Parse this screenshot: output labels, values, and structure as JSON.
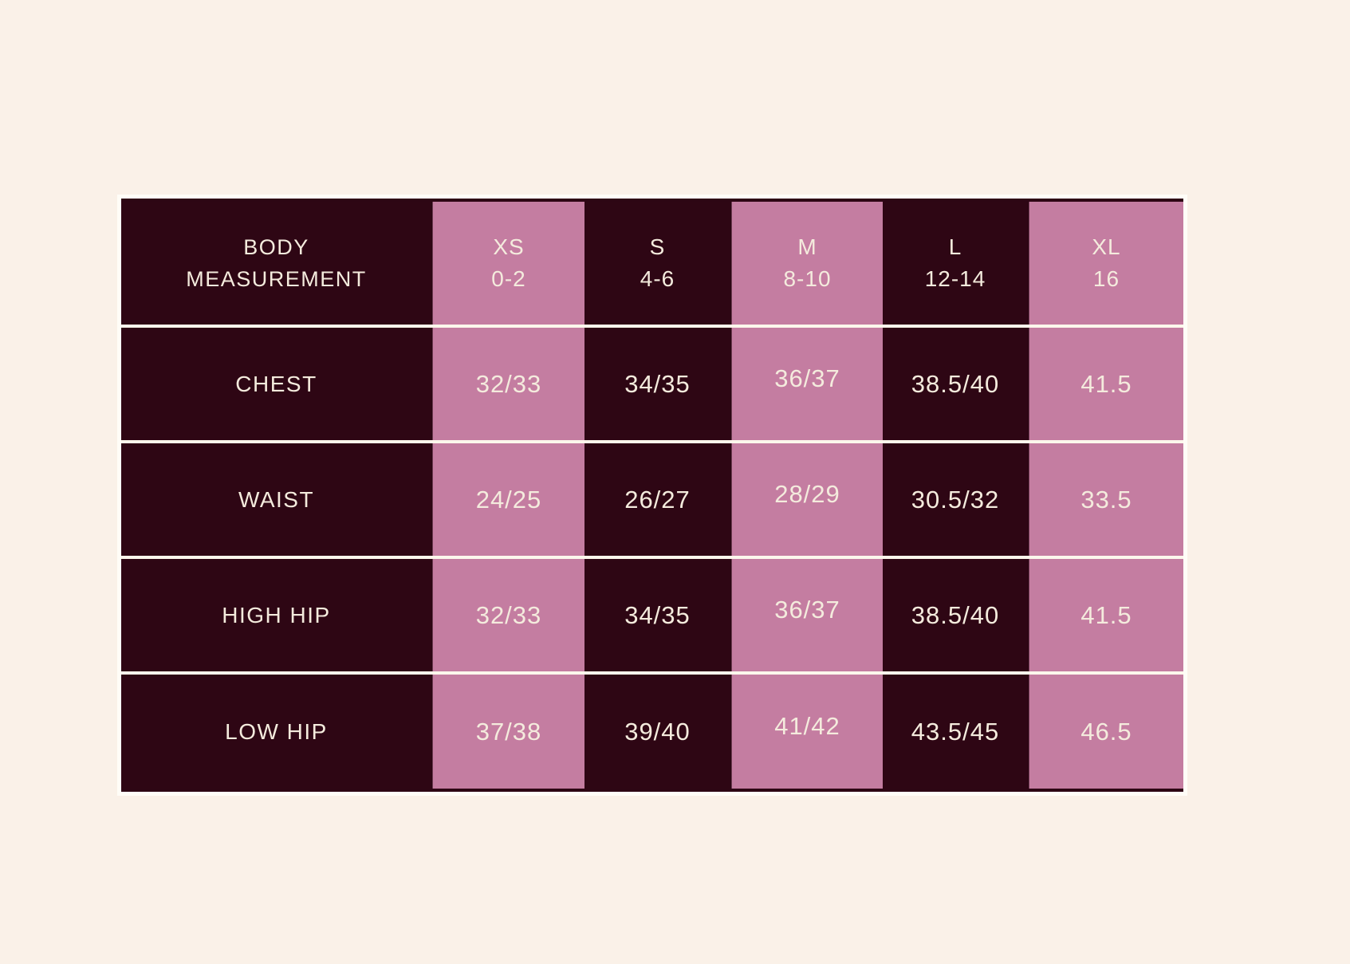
{
  "colors": {
    "background": "#faf1e8",
    "dark_cell": "#2e0614",
    "pink_cell": "#c47da1",
    "text": "#f4ebdd",
    "outer_border": "#fffdf7",
    "row_separator": "#fcf7ec",
    "dark_rule": "#2d0614"
  },
  "size_chart": {
    "header": {
      "label_lines": [
        "BODY",
        "MEASUREMENT"
      ],
      "columns": [
        {
          "size": "XS",
          "range": "0-2"
        },
        {
          "size": "S",
          "range": "4-6"
        },
        {
          "size": "M",
          "range": "8-10"
        },
        {
          "size": "L",
          "range": "12-14"
        },
        {
          "size": "XL",
          "range": "16"
        }
      ]
    },
    "rows": [
      {
        "label": "CHEST",
        "values": [
          "32/33",
          "34/35",
          "36/37",
          "38.5/40",
          "41.5"
        ]
      },
      {
        "label": "WAIST",
        "values": [
          "24/25",
          "26/27",
          "28/29",
          "30.5/32",
          "33.5"
        ]
      },
      {
        "label": "HIGH HIP",
        "values": [
          "32/33",
          "34/35",
          "36/37",
          "38.5/40",
          "41.5"
        ]
      },
      {
        "label": "LOW HIP",
        "values": [
          "37/38",
          "39/40",
          "41/42",
          "43.5/45",
          "46.5"
        ]
      }
    ]
  },
  "chart_data": {
    "type": "table",
    "title": "BODY MEASUREMENT",
    "columns": [
      "BODY MEASUREMENT",
      "XS 0-2",
      "S 4-6",
      "M 8-10",
      "L 12-14",
      "XL 16"
    ],
    "rows": [
      [
        "CHEST",
        "32/33",
        "34/35",
        "36/37",
        "38.5/40",
        "41.5"
      ],
      [
        "WAIST",
        "24/25",
        "26/27",
        "28/29",
        "30.5/32",
        "33.5"
      ],
      [
        "HIGH HIP",
        "32/33",
        "34/35",
        "36/37",
        "38.5/40",
        "41.5"
      ],
      [
        "LOW HIP",
        "37/38",
        "39/40",
        "41/42",
        "43.5/45",
        "46.5"
      ]
    ],
    "layout_hints": {
      "column_style_alternation": [
        "dark",
        "pink",
        "dark",
        "pink",
        "dark",
        "pink"
      ],
      "grid": "cream horizontal separators only"
    }
  }
}
